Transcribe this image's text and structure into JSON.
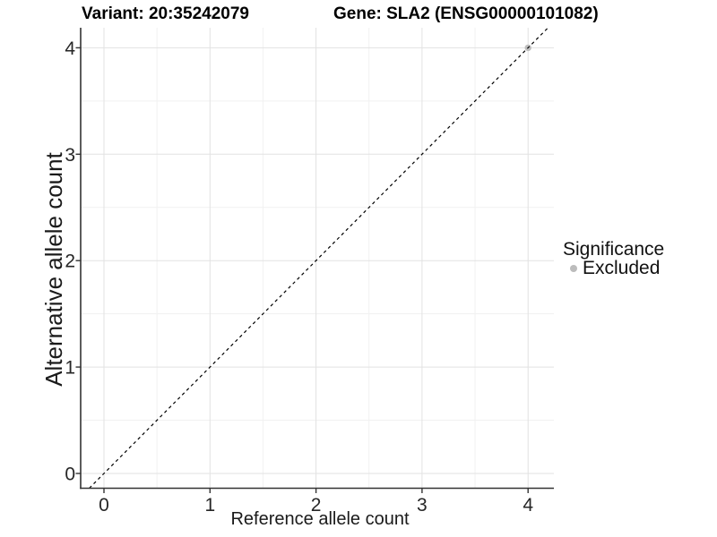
{
  "chart_data": {
    "type": "scatter",
    "title_left": "Variant: 20:35242079",
    "title_right": "Gene: SLA2 (ENSG00000101082)",
    "xlabel": "Reference allele count",
    "ylabel": "Alternative allele count",
    "xlim": [
      -0.22,
      4.24
    ],
    "ylim": [
      -0.14,
      4.19
    ],
    "x_ticks": [
      0,
      1,
      2,
      3,
      4
    ],
    "y_ticks": [
      0,
      1,
      2,
      3,
      4
    ],
    "minor_grid": "at 0.5 intervals between major gridlines",
    "grid": true,
    "points": [
      {
        "x": 4,
        "y": 4,
        "series": "Excluded"
      }
    ],
    "reference_line": {
      "type": "identity y=x",
      "style": "dashed",
      "color": "#000000"
    },
    "legend": {
      "title": "Significance",
      "position": "right",
      "items": [
        {
          "label": "Excluded",
          "color": "#bcbcbc",
          "marker": "circle"
        }
      ]
    },
    "colors": {
      "point_excluded": "#bebebe",
      "grid_major": "#e2e2e2",
      "grid_minor": "#f1f1f1",
      "axis": "#333333",
      "background": "#ffffff"
    }
  }
}
